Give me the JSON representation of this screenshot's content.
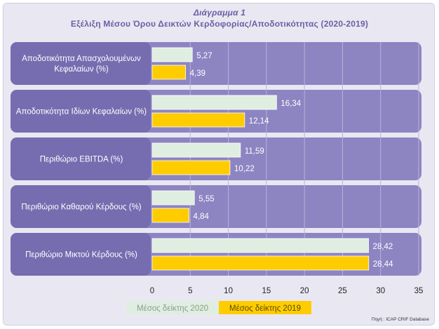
{
  "chart_data": {
    "type": "bar",
    "orientation": "horizontal",
    "title": "Διάγραμμα 1",
    "subtitle": "Εξέλιξη Μέσου Όρου Δεικτών Κερδοφορίας/Αποδοτικότητας (2020-2019)",
    "categories": [
      [
        "Αποδοτικότητα Απασχολουμένων",
        "Κεφαλαίων (%)"
      ],
      [
        "Αποδοτικότητα Ιδίων Κεφαλαίων (%)"
      ],
      [
        "Περιθώριο EBITDA (%)"
      ],
      [
        "Περιθώριο Καθαρού Κέρδους (%)"
      ],
      [
        "Περιθώριο Μικτού Κέρδους (%)"
      ]
    ],
    "series": [
      {
        "name": "Μέσος δείκτης 2020",
        "values": [
          5.27,
          16.34,
          11.59,
          5.55,
          28.42
        ],
        "labels": [
          "5,27",
          "16,34",
          "11,59",
          "5,55",
          "28,42"
        ],
        "color": "#dfeee0"
      },
      {
        "name": "Μέσος δείκτης 2019",
        "values": [
          4.39,
          12.14,
          10.22,
          4.84,
          28.44
        ],
        "labels": [
          "4,39",
          "12,14",
          "10,22",
          "4,84",
          "28,44"
        ],
        "color": "#ffcc00"
      }
    ],
    "xlim": [
      0,
      35
    ],
    "xticks": [
      0,
      5,
      10,
      15,
      20,
      25,
      30,
      35
    ],
    "grid": true,
    "legend": "bottom"
  },
  "source": "Πηγή : ICAP CRIF Database",
  "colors": {
    "band": "#8d84c2",
    "band_dark": "#766cb0",
    "title": "#6a5fa5",
    "grid": "#b8b3d8"
  }
}
